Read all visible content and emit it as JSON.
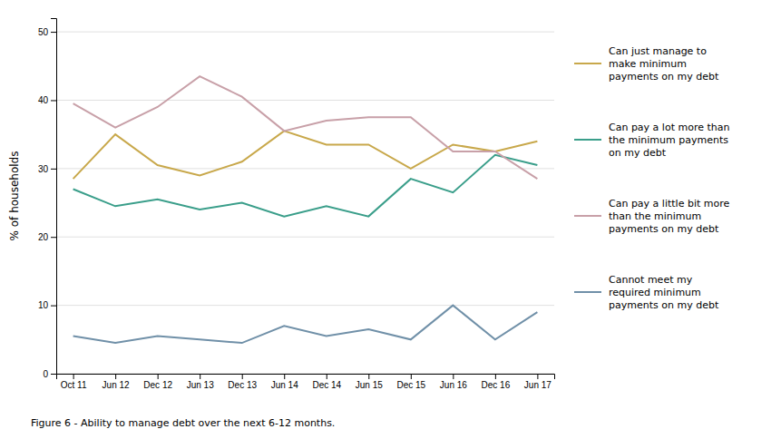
{
  "chart_data": {
    "type": "line",
    "categories": [
      "Oct 11",
      "Jun 12",
      "Dec 12",
      "Jun 13",
      "Dec 13",
      "Jun 14",
      "Dec 14",
      "Jun 15",
      "Dec 15",
      "Jun 16",
      "Dec 16",
      "Jun 17"
    ],
    "series": [
      {
        "name": "Can just manage to\nmake minimum\npayments on my debt",
        "color": "#c8a84b",
        "values": [
          28.5,
          35.0,
          30.5,
          29.0,
          31.0,
          35.5,
          33.5,
          33.5,
          30.0,
          33.5,
          32.5,
          34.0
        ]
      },
      {
        "name": "Can pay a lot more than\nthe minimum payments\non my debt",
        "color": "#3a9e8a",
        "values": [
          27.0,
          24.5,
          25.5,
          24.0,
          25.0,
          23.0,
          24.5,
          23.0,
          28.5,
          26.5,
          32.0,
          30.5
        ]
      },
      {
        "name": "Can pay a little bit more\nthan the minimum\npayments on my debt",
        "color": "#c8a0a8",
        "values": [
          39.5,
          36.0,
          39.0,
          43.5,
          40.5,
          35.5,
          37.0,
          37.5,
          37.5,
          32.5,
          32.5,
          28.5
        ]
      },
      {
        "name": "Cannot meet my\nrequired minimum\npayments on my debt",
        "color": "#7090a8",
        "values": [
          5.5,
          4.5,
          5.5,
          5.0,
          4.5,
          7.0,
          5.5,
          6.5,
          5.0,
          10.0,
          5.0,
          9.0
        ]
      }
    ],
    "ylabel": "% of households",
    "ylim": [
      0,
      52
    ],
    "yticks": [
      0,
      10,
      20,
      30,
      40,
      50
    ],
    "grid": true,
    "legend": "right",
    "caption": "Figure 6 - Ability to manage debt over the next 6-12 months."
  }
}
